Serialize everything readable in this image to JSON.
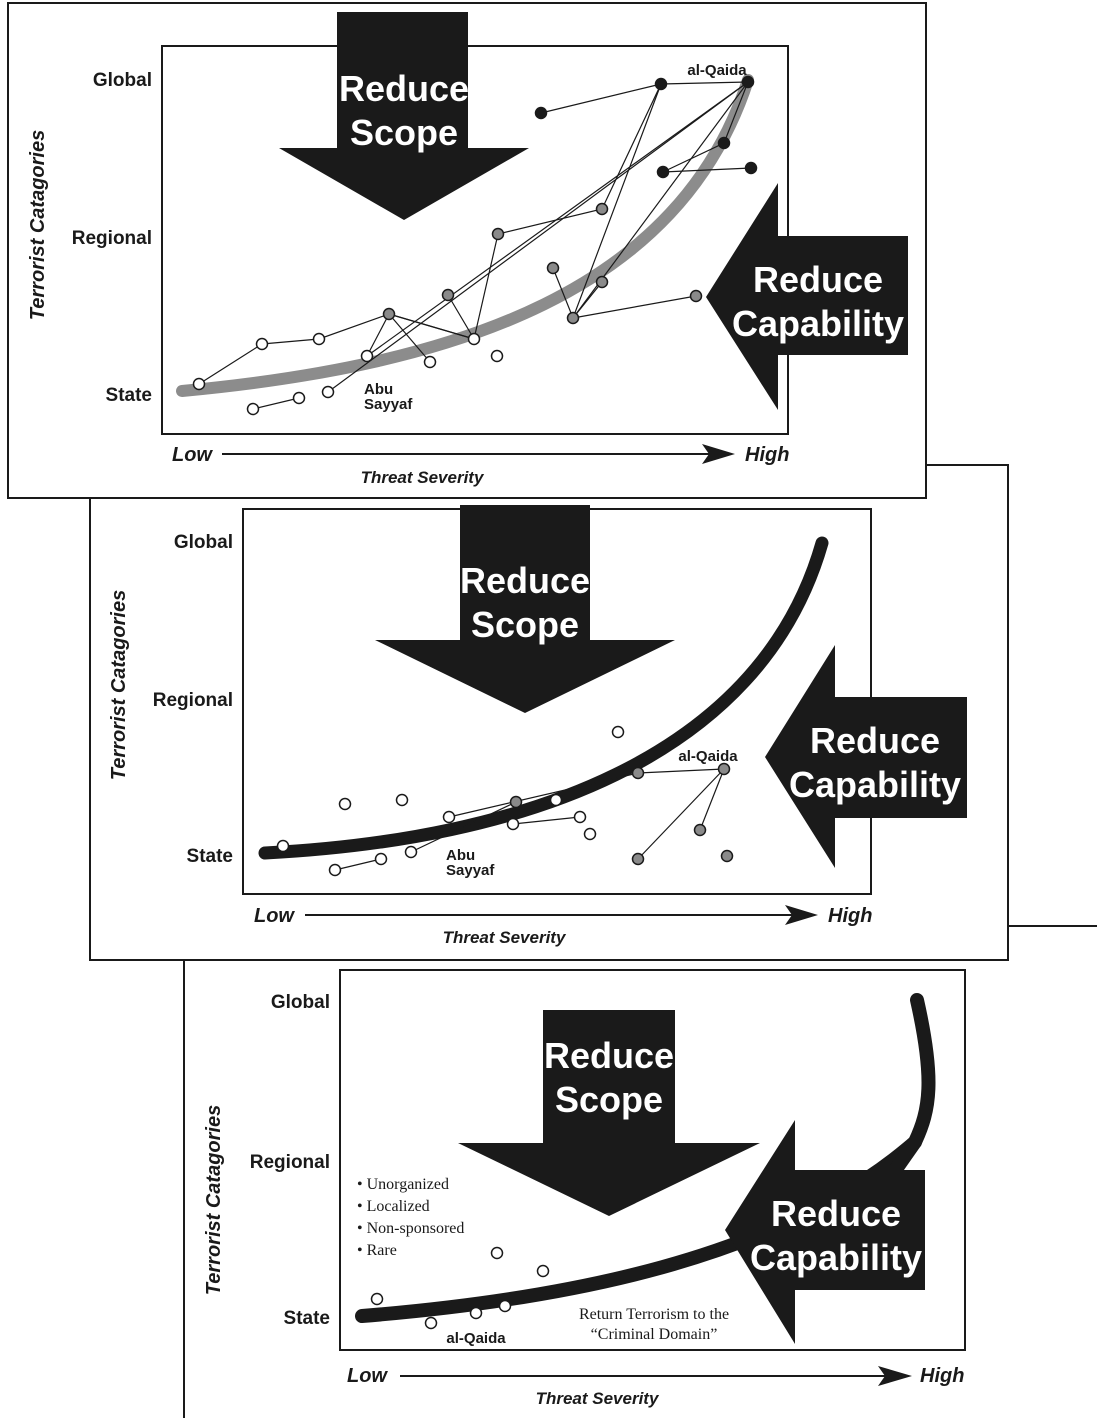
{
  "panels": [
    {
      "y_title": "Terrorist Catagories",
      "y_levels": [
        "Global",
        "Regional",
        "State"
      ],
      "x_low": "Low",
      "x_high": "High",
      "x_title": "Threat Severity",
      "scope_arrow": [
        "Reduce",
        "Scope"
      ],
      "capability_arrow": [
        "Reduce",
        "Capability"
      ],
      "top_label": "al-Qaida",
      "group_label": [
        "Abu",
        "Sayyaf"
      ]
    },
    {
      "y_title": "Terrorist Catagories",
      "y_levels": [
        "Global",
        "Regional",
        "State"
      ],
      "x_low": "Low",
      "x_high": "High",
      "x_title": "Threat Severity",
      "scope_arrow": [
        "Reduce",
        "Scope"
      ],
      "capability_arrow": [
        "Reduce",
        "Capability"
      ],
      "top_label": "al-Qaida",
      "group_label": [
        "Abu",
        "Sayyaf"
      ]
    },
    {
      "y_title": "Terrorist Catagories",
      "y_levels": [
        "Global",
        "Regional",
        "State"
      ],
      "x_low": "Low",
      "x_high": "High",
      "x_title": "Threat Severity",
      "scope_arrow": [
        "Reduce",
        "Scope"
      ],
      "capability_arrow": [
        "Reduce",
        "Capability"
      ],
      "bottom_label": "al-Qaida",
      "bullets": [
        "• Unorganized",
        "• Localized",
        "• Non-sponsored",
        "• Rare"
      ],
      "note": [
        "Return Terrorism to the",
        "“Criminal Domain”"
      ]
    }
  ],
  "colors": {
    "ink": "#1a1a1a",
    "curve_gray": "#8c8c8c",
    "node_black": "#1a1a1a",
    "node_gray": "#8a8a8a",
    "node_white": "#ffffff"
  }
}
